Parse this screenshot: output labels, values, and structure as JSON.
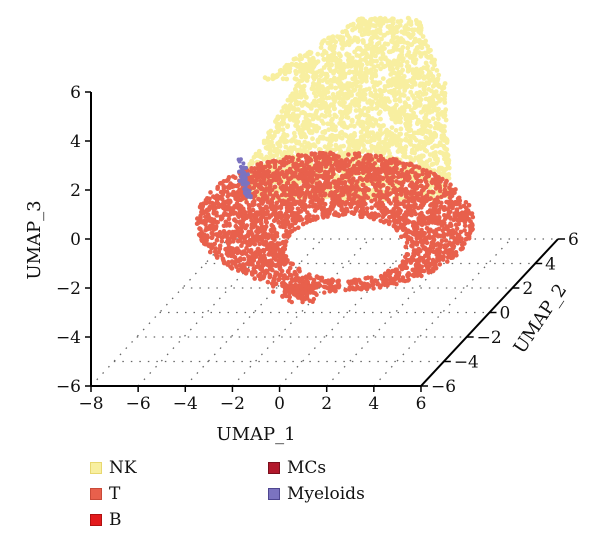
{
  "chart_data": {
    "type": "scatter",
    "projection": "3d",
    "xlabel": "UMAP_1",
    "ylabel": "UMAP_2",
    "zlabel": "UMAP_3",
    "xlim": [
      -8,
      6
    ],
    "ylim": [
      -6,
      6
    ],
    "zlim": [
      -6,
      6
    ],
    "xticks": [
      "−8",
      "−6",
      "−4",
      "−2",
      "0",
      "2",
      "4",
      "6"
    ],
    "yticks": [
      "−6",
      "−4",
      "−2",
      "0",
      "2",
      "4",
      "6"
    ],
    "zticks": [
      "−6",
      "−4",
      "−2",
      "0",
      "2",
      "4",
      "6"
    ],
    "grid": true,
    "legend_position": "bottom",
    "series": [
      {
        "name": "NK",
        "color": "#F8EFA0",
        "border": "#E8D870",
        "points": 9000
      },
      {
        "name": "T",
        "color": "#E8604C",
        "border": "#C94A38",
        "points": 12000
      },
      {
        "name": "B",
        "color": "#E31A1C",
        "border": "#B01010",
        "points": 0
      },
      {
        "name": "MCs",
        "color": "#B2182B",
        "border": "#7A0F1D",
        "points": 0
      },
      {
        "name": "Myeloids",
        "color": "#7B73C0",
        "border": "#4E4690",
        "points": 120
      }
    ]
  }
}
